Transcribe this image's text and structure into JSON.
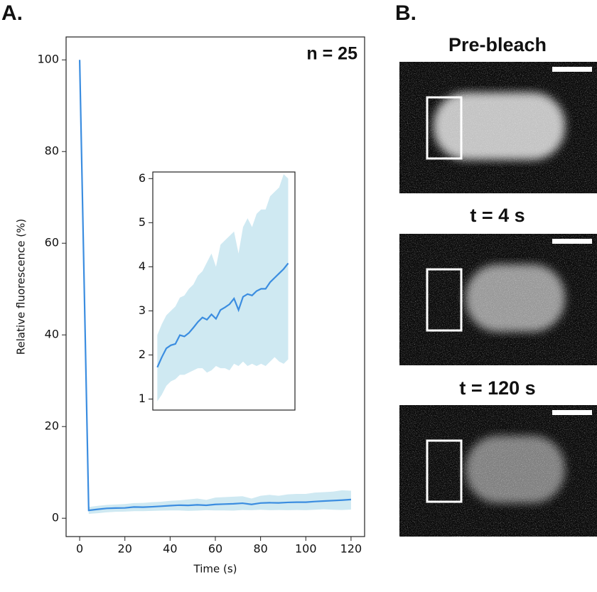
{
  "panel_labels": [
    "A.",
    "B."
  ],
  "chart_data": [
    {
      "type": "line",
      "annotation": "n = 25",
      "xlabel": "Time (s)",
      "ylabel": "Relative fluorescence (%)",
      "x": [
        0,
        4,
        8,
        12,
        16,
        20,
        24,
        28,
        32,
        36,
        40,
        44,
        48,
        52,
        56,
        60,
        64,
        68,
        72,
        76,
        80,
        84,
        88,
        92,
        96,
        100,
        104,
        108,
        112,
        116,
        120
      ],
      "series": [
        {
          "color": "#3b8de0",
          "band_color": "#cfe9f2",
          "values": [
            100,
            1.72,
            1.95,
            2.15,
            2.22,
            2.25,
            2.45,
            2.42,
            2.5,
            2.62,
            2.75,
            2.85,
            2.8,
            2.92,
            2.82,
            3.02,
            3.08,
            3.15,
            3.28,
            3.02,
            3.32,
            3.38,
            3.35,
            3.45,
            3.5,
            3.5,
            3.65,
            3.75,
            3.85,
            3.95,
            4.08
          ],
          "lower": [
            100,
            0.95,
            1.1,
            1.3,
            1.4,
            1.45,
            1.55,
            1.55,
            1.6,
            1.65,
            1.7,
            1.7,
            1.6,
            1.65,
            1.75,
            1.7,
            1.7,
            1.65,
            1.8,
            1.75,
            1.85,
            1.75,
            1.8,
            1.75,
            1.8,
            1.75,
            1.85,
            1.95,
            1.85,
            1.8,
            1.9
          ],
          "upper": [
            100,
            2.45,
            2.7,
            2.9,
            3.0,
            3.1,
            3.3,
            3.35,
            3.5,
            3.6,
            3.8,
            3.9,
            4.1,
            4.3,
            4.0,
            4.5,
            4.6,
            4.7,
            4.8,
            4.3,
            4.9,
            5.1,
            4.9,
            5.2,
            5.3,
            5.3,
            5.6,
            5.7,
            5.8,
            6.1,
            6.0
          ]
        }
      ],
      "xlim": [
        -6,
        126
      ],
      "ylim": [
        -4,
        105
      ],
      "xticks": [
        0,
        20,
        40,
        60,
        80,
        100,
        120
      ],
      "yticks": [
        0,
        20,
        40,
        60,
        80,
        100
      ]
    },
    {
      "type": "line",
      "x": [
        4,
        8,
        12,
        16,
        20,
        24,
        28,
        32,
        36,
        40,
        44,
        48,
        52,
        56,
        60,
        64,
        68,
        72,
        76,
        80,
        84,
        88,
        92,
        96,
        100,
        104,
        108,
        112,
        116,
        120
      ],
      "series": [
        {
          "color": "#3b8de0",
          "band_color": "#cfe9f2",
          "values": [
            1.72,
            1.95,
            2.15,
            2.22,
            2.25,
            2.45,
            2.42,
            2.5,
            2.62,
            2.75,
            2.85,
            2.8,
            2.92,
            2.82,
            3.02,
            3.08,
            3.15,
            3.28,
            3.02,
            3.32,
            3.38,
            3.35,
            3.45,
            3.5,
            3.5,
            3.65,
            3.75,
            3.85,
            3.95,
            4.08
          ],
          "lower": [
            0.95,
            1.1,
            1.3,
            1.4,
            1.45,
            1.55,
            1.55,
            1.6,
            1.65,
            1.7,
            1.7,
            1.6,
            1.65,
            1.75,
            1.7,
            1.7,
            1.65,
            1.8,
            1.75,
            1.85,
            1.75,
            1.8,
            1.75,
            1.8,
            1.75,
            1.85,
            1.95,
            1.85,
            1.8,
            1.9
          ],
          "upper": [
            2.45,
            2.7,
            2.9,
            3.0,
            3.1,
            3.3,
            3.35,
            3.5,
            3.6,
            3.8,
            3.9,
            4.1,
            4.3,
            4.0,
            4.5,
            4.6,
            4.7,
            4.8,
            4.3,
            4.9,
            5.1,
            4.9,
            5.2,
            5.3,
            5.3,
            5.6,
            5.7,
            5.8,
            6.1,
            6.0
          ]
        }
      ],
      "xlim": [
        0,
        126
      ],
      "ylim": [
        0.75,
        6.15
      ],
      "yticks": [
        1,
        2,
        3,
        4,
        5,
        6
      ]
    }
  ],
  "images": [
    {
      "title": "Pre-bleach"
    },
    {
      "title": "t = 4 s"
    },
    {
      "title": "t = 120 s"
    }
  ]
}
